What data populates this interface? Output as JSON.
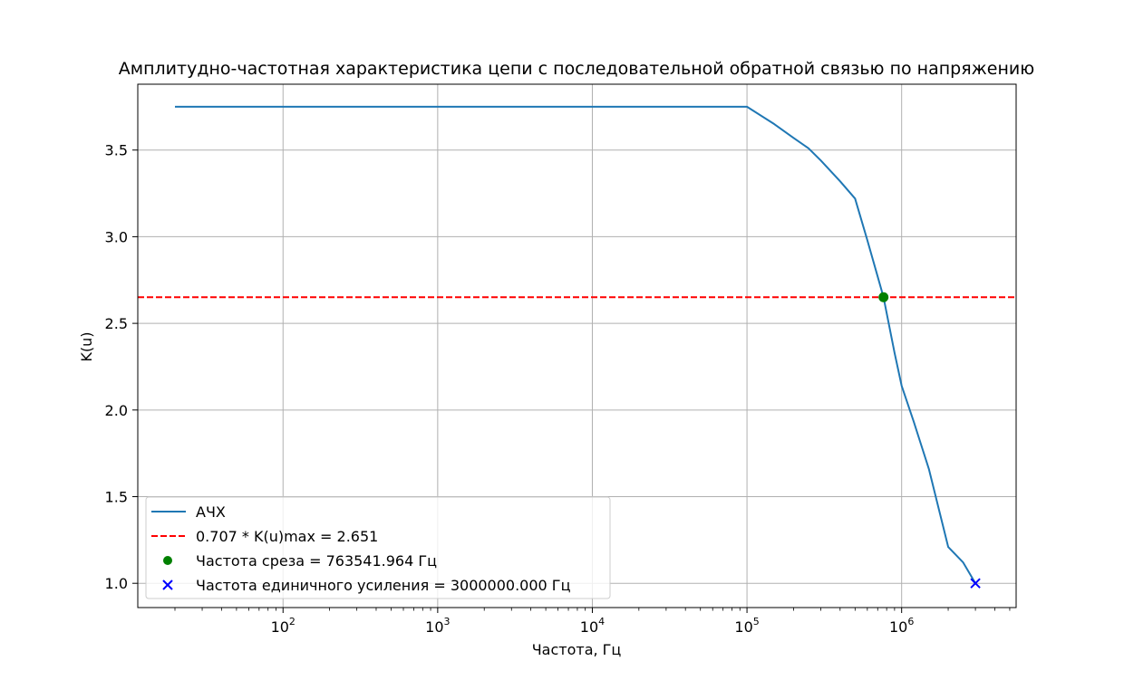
{
  "chart_data": {
    "type": "line",
    "title": "Амплитудно-частотная характеристика цепи с последовательной обратной связью по напряжению",
    "xlabel": "Частота, Гц",
    "ylabel": "K(u)",
    "xscale": "log",
    "xlim": [
      11.5,
      5500000
    ],
    "ylim": [
      0.86,
      3.88
    ],
    "grid": true,
    "legend_position": "lower-left",
    "x_ticks": [
      {
        "value": 100,
        "base": "10",
        "exp": "2"
      },
      {
        "value": 1000,
        "base": "10",
        "exp": "3"
      },
      {
        "value": 10000,
        "base": "10",
        "exp": "4"
      },
      {
        "value": 100000,
        "base": "10",
        "exp": "5"
      },
      {
        "value": 1000000,
        "base": "10",
        "exp": "6"
      }
    ],
    "y_ticks": [
      {
        "value": 1.0,
        "label": "1.0"
      },
      {
        "value": 1.5,
        "label": "1.5"
      },
      {
        "value": 2.0,
        "label": "2.0"
      },
      {
        "value": 2.5,
        "label": "2.5"
      },
      {
        "value": 3.0,
        "label": "3.0"
      },
      {
        "value": 3.5,
        "label": "3.5"
      }
    ],
    "series": [
      {
        "name": "АЧХ",
        "color": "#1f77b4",
        "style": "line",
        "x": [
          20,
          100,
          1000,
          10000,
          100000,
          150000,
          200000,
          250000,
          300000,
          400000,
          500000,
          600000,
          700000,
          763541.964,
          800000,
          900000,
          1000000,
          1200000,
          1500000,
          2000000,
          2500000,
          3000000
        ],
        "y": [
          3.75,
          3.75,
          3.75,
          3.75,
          3.75,
          3.65,
          3.57,
          3.51,
          3.44,
          3.32,
          3.22,
          2.98,
          2.77,
          2.651,
          2.56,
          2.33,
          2.14,
          1.93,
          1.66,
          1.21,
          1.12,
          1.0
        ]
      },
      {
        "name": "0.707 * K(u)max = 2.651",
        "color": "#ff0000",
        "style": "hline",
        "y": 2.651
      },
      {
        "name": "Частота среза = 763541.964 Гц",
        "color": "#008000",
        "style": "point-circle",
        "x": [
          763541.964
        ],
        "y": [
          2.651
        ]
      },
      {
        "name": "Частота единичного усиления = 3000000.000 Гц",
        "color": "#0000ff",
        "style": "point-x",
        "x": [
          3000000
        ],
        "y": [
          1.0
        ]
      }
    ]
  }
}
